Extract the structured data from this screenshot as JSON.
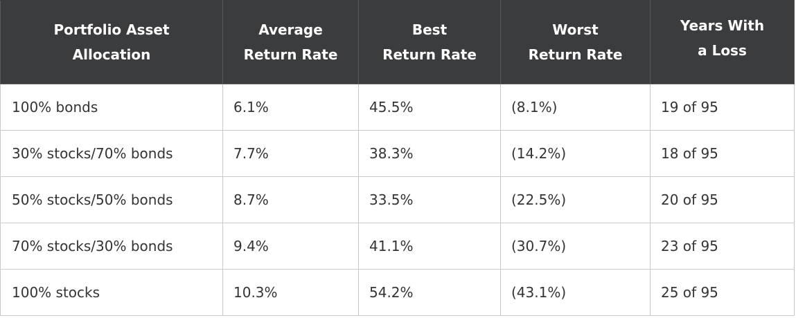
{
  "table": {
    "headers": [
      {
        "line1": "Portfolio Asset",
        "line2": "Allocation"
      },
      {
        "line1": "Average",
        "line2": "Return Rate"
      },
      {
        "line1": "Best",
        "line2": "Return Rate"
      },
      {
        "line1": "Worst",
        "line2": "Return Rate"
      },
      {
        "line1": "Years With",
        "line2": "a Loss"
      }
    ],
    "rows": [
      [
        "100% bonds",
        "6.1%",
        "45.5%",
        "(8.1%)",
        "19 of 95"
      ],
      [
        "30% stocks/70% bonds",
        "7.7%",
        "38.3%",
        "(14.2%)",
        "18 of 95"
      ],
      [
        "50% stocks/50% bonds",
        "8.7%",
        "33.5%",
        "(22.5%)",
        "20 of 95"
      ],
      [
        "70% stocks/30% bonds",
        "9.4%",
        "41.1%",
        "(30.7%)",
        "23 of 95"
      ],
      [
        "100% stocks",
        "10.3%",
        "54.2%",
        "(43.1%)",
        "25 of 95"
      ]
    ]
  },
  "colors": {
    "header_background": "#3b3c3e",
    "header_text": "#ffffff",
    "body_text": "#333333",
    "border": "#c9c9c9"
  }
}
